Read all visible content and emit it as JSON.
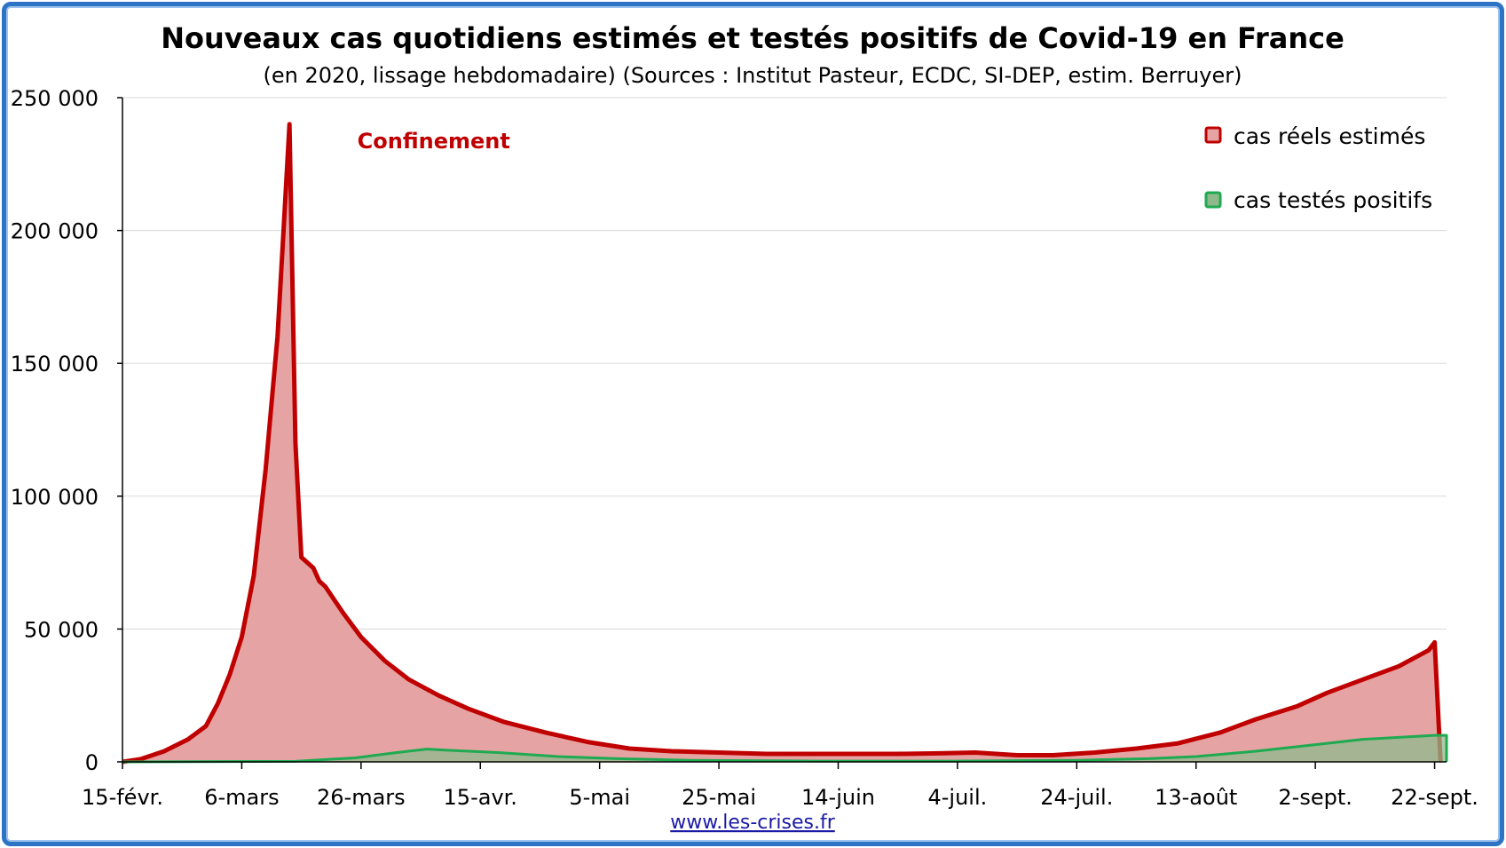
{
  "colors": {
    "estimated_line": "#c00000",
    "estimated_fill": "#e6a3a3",
    "tested_line": "#1faa52",
    "tested_fill": "#8fb98c",
    "grid": "#d9d9d9",
    "frame": "#2e74c4",
    "source_link": "#1a1aa6"
  },
  "source_link": "www.les-crises.fr",
  "chart_data": {
    "type": "area",
    "title": "Nouveaux cas quotidiens estimés et testés positifs de Covid-19 en France",
    "subtitle": "(en 2020, lissage hebdomadaire) (Sources : Institut Pasteur, ECDC, SI-DEP, estim. Berruyer)",
    "xlabel": "",
    "ylabel": "",
    "x_range": [
      "2020-02-15",
      "2020-09-24"
    ],
    "ylim": [
      0,
      250000
    ],
    "y_ticks": [
      0,
      50000,
      100000,
      150000,
      200000,
      250000
    ],
    "y_tick_labels": [
      "0",
      "50 000",
      "100 000",
      "150 000",
      "200 000",
      "250 000"
    ],
    "x_ticks": [
      "2020-02-15",
      "2020-03-06",
      "2020-03-26",
      "2020-04-15",
      "2020-05-05",
      "2020-05-25",
      "2020-06-14",
      "2020-07-04",
      "2020-07-24",
      "2020-08-13",
      "2020-09-02",
      "2020-09-22"
    ],
    "x_tick_labels": [
      "15-févr.",
      "6-mars",
      "26-mars",
      "15-avr.",
      "5-mai",
      "25-mai",
      "14-juin",
      "4-juil.",
      "24-juil.",
      "13-août",
      "2-sept.",
      "22-sept."
    ],
    "grid": "horizontal",
    "legend_position": "top-right",
    "annotations": [
      {
        "text": "Confinement",
        "x": "2020-03-23",
        "y": 237000
      }
    ],
    "series": [
      {
        "name": "cas réels estimés",
        "points": [
          [
            "2020-02-15",
            0
          ],
          [
            "2020-02-18",
            1000
          ],
          [
            "2020-02-22",
            4000
          ],
          [
            "2020-02-26",
            8500
          ],
          [
            "2020-02-29",
            13500
          ],
          [
            "2020-03-02",
            22000
          ],
          [
            "2020-03-04",
            33000
          ],
          [
            "2020-03-06",
            47000
          ],
          [
            "2020-03-08",
            70000
          ],
          [
            "2020-03-10",
            110000
          ],
          [
            "2020-03-12",
            160000
          ],
          [
            "2020-03-13",
            200000
          ],
          [
            "2020-03-14",
            240000
          ],
          [
            "2020-03-15",
            120000
          ],
          [
            "2020-03-16",
            77000
          ],
          [
            "2020-03-18",
            73000
          ],
          [
            "2020-03-19",
            68000
          ],
          [
            "2020-03-20",
            66000
          ],
          [
            "2020-03-23",
            56000
          ],
          [
            "2020-03-26",
            47000
          ],
          [
            "2020-03-30",
            38000
          ],
          [
            "2020-04-03",
            31000
          ],
          [
            "2020-04-08",
            25000
          ],
          [
            "2020-04-13",
            20000
          ],
          [
            "2020-04-19",
            15000
          ],
          [
            "2020-04-26",
            11000
          ],
          [
            "2020-05-03",
            7500
          ],
          [
            "2020-05-10",
            5000
          ],
          [
            "2020-05-17",
            4000
          ],
          [
            "2020-05-25",
            3500
          ],
          [
            "2020-06-02",
            3000
          ],
          [
            "2020-06-14",
            3000
          ],
          [
            "2020-06-24",
            3000
          ],
          [
            "2020-07-01",
            3200
          ],
          [
            "2020-07-07",
            3500
          ],
          [
            "2020-07-14",
            2500
          ],
          [
            "2020-07-20",
            2500
          ],
          [
            "2020-07-27",
            3500
          ],
          [
            "2020-08-03",
            5000
          ],
          [
            "2020-08-10",
            7000
          ],
          [
            "2020-08-17",
            11000
          ],
          [
            "2020-08-23",
            16000
          ],
          [
            "2020-08-30",
            21000
          ],
          [
            "2020-09-04",
            26000
          ],
          [
            "2020-09-10",
            31000
          ],
          [
            "2020-09-16",
            36000
          ],
          [
            "2020-09-21",
            42000
          ],
          [
            "2020-09-22",
            45000
          ],
          [
            "2020-09-23",
            0
          ]
        ]
      },
      {
        "name": "cas testés positifs",
        "points": [
          [
            "2020-02-15",
            0
          ],
          [
            "2020-03-15",
            200
          ],
          [
            "2020-03-25",
            1500
          ],
          [
            "2020-04-01",
            3500
          ],
          [
            "2020-04-06",
            4800
          ],
          [
            "2020-04-11",
            4200
          ],
          [
            "2020-04-18",
            3500
          ],
          [
            "2020-04-28",
            2000
          ],
          [
            "2020-05-08",
            1200
          ],
          [
            "2020-05-20",
            600
          ],
          [
            "2020-06-10",
            300
          ],
          [
            "2020-07-04",
            300
          ],
          [
            "2020-07-24",
            600
          ],
          [
            "2020-08-05",
            1200
          ],
          [
            "2020-08-13",
            2000
          ],
          [
            "2020-08-23",
            4000
          ],
          [
            "2020-09-02",
            6500
          ],
          [
            "2020-09-10",
            8500
          ],
          [
            "2020-09-22",
            10000
          ],
          [
            "2020-09-24",
            10000
          ],
          [
            "2020-09-24",
            0
          ]
        ]
      }
    ]
  }
}
